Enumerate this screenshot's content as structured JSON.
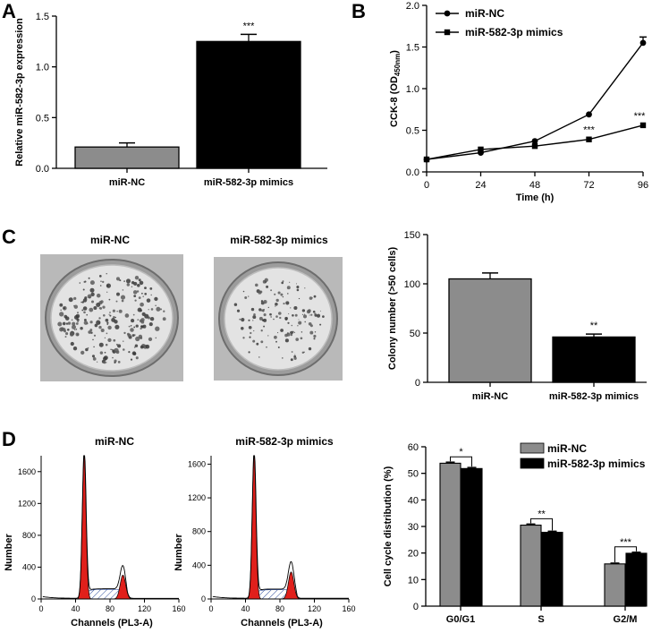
{
  "panels": {
    "a": "A",
    "b": "B",
    "c": "C",
    "d": "D"
  },
  "colors": {
    "gray": "#8c8c8c",
    "black": "#000000",
    "red": "#e0201b",
    "dish_bg": "#b9b9b9",
    "dish_plate": "#e3e3e3"
  },
  "panel_c": {
    "titles": [
      "miR-NC",
      "miR-582-3p mimics"
    ],
    "dish_icon": "petri-dish-image"
  },
  "panel_d": {
    "titles": [
      "miR-NC",
      "miR-582-3p mimics"
    ],
    "histograms": [
      {
        "name": "miR-NC",
        "xlabel": "Channels (PL3-A)",
        "ylabel": "Number",
        "xticks": [
          "0",
          "40",
          "80",
          "120",
          "160"
        ],
        "yticks": [
          "0",
          "400",
          "800",
          "1200",
          "1600"
        ],
        "xlim": [
          0,
          160
        ],
        "ylim": [
          0,
          1800
        ],
        "g1_peak": {
          "x": 50,
          "height": 1800
        },
        "g2_peak": {
          "x": 95,
          "height": 300
        },
        "s_plateau": 120
      },
      {
        "name": "miR-582-3p mimics",
        "xlabel": "Channels (PL3-A)",
        "ylabel": "Number",
        "xticks": [
          "0",
          "40",
          "80",
          "120",
          "160"
        ],
        "yticks": [
          "0",
          "400",
          "800",
          "1200",
          "1600"
        ],
        "xlim": [
          0,
          160
        ],
        "ylim": [
          0,
          1700
        ],
        "g1_peak": {
          "x": 50,
          "height": 1700
        },
        "g2_peak": {
          "x": 93,
          "height": 320
        },
        "s_plateau": 110
      }
    ]
  },
  "chart_data": [
    {
      "id": "A",
      "type": "bar",
      "categories": [
        "miR-NC",
        "miR-582-3p mimics"
      ],
      "values": [
        0.21,
        1.25
      ],
      "errors": [
        0.04,
        0.07
      ],
      "colors": [
        "#8c8c8c",
        "#000000"
      ],
      "significance": [
        "",
        "***"
      ],
      "xlabel": "",
      "ylabel": "Relative miR-582-3p expression",
      "ylim": [
        0,
        1.5
      ],
      "yticks": [
        "0.0",
        "0.5",
        "1.0",
        "1.5"
      ]
    },
    {
      "id": "B",
      "type": "line",
      "x": [
        0,
        24,
        48,
        72,
        96
      ],
      "series": [
        {
          "name": "miR-NC",
          "marker": "circle",
          "values": [
            0.15,
            0.23,
            0.37,
            0.69,
            1.55
          ],
          "errors": [
            0.01,
            0.02,
            0.02,
            0.02,
            0.07
          ]
        },
        {
          "name": "miR-582-3p mimics",
          "marker": "square",
          "values": [
            0.15,
            0.27,
            0.31,
            0.39,
            0.56
          ],
          "errors": [
            0.01,
            0.02,
            0.02,
            0.02,
            0.02
          ]
        }
      ],
      "significance": [
        {
          "x": 72,
          "label": "***"
        },
        {
          "x": 96,
          "label": "***"
        }
      ],
      "xlabel": "Time (h)",
      "ylabel": "CCK-8 (OD",
      "ylabel_sub": "450nm",
      "ylabel_end": ")",
      "xlim": [
        0,
        96
      ],
      "ylim": [
        0,
        2.0
      ],
      "xticks": [
        "0",
        "24",
        "48",
        "72",
        "96"
      ],
      "yticks": [
        "0.0",
        "0.5",
        "1.0",
        "1.5",
        "2.0"
      ]
    },
    {
      "id": "C",
      "type": "bar",
      "categories": [
        "miR-NC",
        "miR-582-3p mimics"
      ],
      "values": [
        105,
        46
      ],
      "errors": [
        6,
        3
      ],
      "colors": [
        "#8c8c8c",
        "#000000"
      ],
      "significance": [
        "",
        "**"
      ],
      "xlabel": "",
      "ylabel": "Colony number (>50 cells)",
      "ylim": [
        0,
        150
      ],
      "yticks": [
        "0",
        "50",
        "100",
        "150"
      ]
    },
    {
      "id": "D",
      "type": "bar",
      "categories": [
        "G0/G1",
        "S",
        "G2/M"
      ],
      "series": [
        {
          "name": "miR-NC",
          "color": "#8c8c8c",
          "values": [
            53.8,
            30.5,
            15.9
          ],
          "errors": [
            0.4,
            0.4,
            0.3
          ]
        },
        {
          "name": "miR-582-3p mimics",
          "color": "#000000",
          "values": [
            51.8,
            27.8,
            19.9
          ],
          "errors": [
            0.4,
            0.4,
            0.4
          ]
        }
      ],
      "significance": [
        "*",
        "**",
        "***"
      ],
      "xlabel": "",
      "ylabel": "Cell cycle distribution (%)",
      "ylim": [
        0,
        60
      ],
      "yticks": [
        "0",
        "10",
        "20",
        "30",
        "40",
        "50",
        "60"
      ]
    }
  ]
}
